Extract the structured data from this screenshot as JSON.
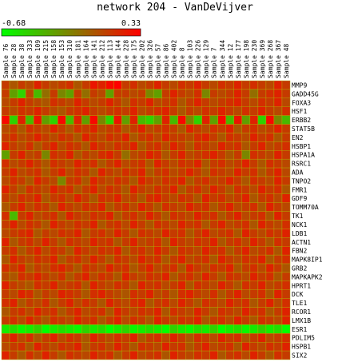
{
  "chart_data": {
    "type": "heatmap",
    "title": "network 204 - VanDeVijver",
    "color_scale": {
      "min": -0.68,
      "max": 0.33,
      "min_label": "-0.68",
      "max_label": "0.33",
      "low_color": "#00ff00",
      "mid_color": "#808000",
      "high_color": "#ff0000"
    },
    "columns": [
      "Sample 76",
      "Sample 28",
      "Sample 38",
      "Sample 333",
      "Sample 109",
      "Sample 215",
      "Sample 158",
      "Sample 153",
      "Sample 310",
      "Sample 181",
      "Sample 164",
      "Sample 141",
      "Sample 212",
      "Sample 113",
      "Sample 144",
      "Sample 228",
      "Sample 175",
      "Sample 202",
      "Sample 326",
      "Sample 57",
      "Sample 86",
      "Sample 402",
      "Sample 8",
      "Sample 103",
      "Sample 226",
      "Sample 129",
      "Sample 7",
      "Sample 344",
      "Sample 12",
      "Sample 177",
      "Sample 198",
      "Sample 230",
      "Sample 369",
      "Sample 268",
      "Sample 367",
      "Sample 48"
    ],
    "rows": [
      "MMP9",
      "GADD45G",
      "FOXA3",
      "HSF1",
      "ERBB2",
      "STAT5B",
      "EN2",
      "HSBP1",
      "HSPA1A",
      "RSRC1",
      "ADA",
      "TNPO2",
      "FMR1",
      "GDF9",
      "TOMM70A",
      "TK1",
      "NCK1",
      "LDB1",
      "ACTN1",
      "FBN2",
      "MAPK8IP1",
      "GRB2",
      "MAPKAPK2",
      "HPRT1",
      "DCK",
      "TLE1",
      "RCOR1",
      "LMX1B",
      "ESR1",
      "PDLIM5",
      "HSPB1",
      "SIX2"
    ],
    "values": [
      [
        0.1,
        0.0,
        0.1,
        0.05,
        0.2,
        0.1,
        0.05,
        0.1,
        0.15,
        0.0,
        0.1,
        0.25,
        0.2,
        0.3,
        0.33,
        0.1,
        0.15,
        0.05,
        0.1,
        0.2,
        0.1,
        0.05,
        0.15,
        0.1,
        0.2,
        0.1,
        0.05,
        0.15,
        0.1,
        0.2,
        0.1,
        0.15,
        0.1,
        0.05,
        0.2,
        0.1
      ],
      [
        0.1,
        -0.3,
        -0.5,
        0.05,
        -0.4,
        -0.1,
        0.1,
        -0.2,
        -0.3,
        0.1,
        -0.1,
        0.1,
        0.05,
        -0.3,
        0.1,
        0.1,
        0.05,
        0.1,
        -0.2,
        -0.3,
        0.1,
        0.2,
        0.1,
        0.05,
        0.15,
        -0.2,
        0.1,
        0.05,
        0.1,
        0.2,
        0.1,
        -0.1,
        0.1,
        0.15,
        0.2,
        0.1
      ],
      [
        0.05,
        0.1,
        0.2,
        0.1,
        0.05,
        0.0,
        0.15,
        0.1,
        0.05,
        0.2,
        0.1,
        0.05,
        0.1,
        0.2,
        0.1,
        0.0,
        0.15,
        0.1,
        0.2,
        0.05,
        0.1,
        0.15,
        0.0,
        0.1,
        0.2,
        0.1,
        0.05,
        0.1,
        0.15,
        0.2,
        0.1,
        0.05,
        0.15,
        0.1,
        0.2,
        0.05
      ],
      [
        0.1,
        0.05,
        0.15,
        0.1,
        0.2,
        0.1,
        0.05,
        0.0,
        0.1,
        0.15,
        0.2,
        0.1,
        0.05,
        0.1,
        0.15,
        0.1,
        0.2,
        0.05,
        0.1,
        0.15,
        0.2,
        0.1,
        0.0,
        0.1,
        0.05,
        0.15,
        0.1,
        0.2,
        0.1,
        0.05,
        0.15,
        0.1,
        0.2,
        0.1,
        0.05,
        0.15
      ],
      [
        0.3,
        -0.5,
        0.2,
        -0.4,
        0.25,
        -0.3,
        -0.5,
        0.3,
        -0.4,
        0.2,
        -0.3,
        0.3,
        -0.2,
        -0.5,
        0.25,
        -0.3,
        0.2,
        -0.4,
        -0.5,
        -0.3,
        0.2,
        -0.4,
        0.3,
        -0.2,
        -0.5,
        0.2,
        -0.3,
        0.3,
        -0.4,
        0.25,
        -0.3,
        0.2,
        -0.5,
        0.3,
        -0.2,
        -0.4
      ],
      [
        0.05,
        0.1,
        0.0,
        0.15,
        0.1,
        0.05,
        0.2,
        0.1,
        0.0,
        0.15,
        0.1,
        0.2,
        0.05,
        0.1,
        0.15,
        0.0,
        0.1,
        0.2,
        0.05,
        0.1,
        0.15,
        0.1,
        0.0,
        0.2,
        0.1,
        0.05,
        0.15,
        0.1,
        0.2,
        0.0,
        0.1,
        0.15,
        0.05,
        0.1,
        0.2,
        0.1
      ],
      [
        0.1,
        0.15,
        0.05,
        0.1,
        0.2,
        0.1,
        0.05,
        0.15,
        0.1,
        0.0,
        0.2,
        0.1,
        0.05,
        0.15,
        0.1,
        0.2,
        0.0,
        0.1,
        0.15,
        0.05,
        0.2,
        0.1,
        0.1,
        0.05,
        0.15,
        0.2,
        0.1,
        0.0,
        0.15,
        0.1,
        0.05,
        0.2,
        0.1,
        0.15,
        0.0,
        0.1
      ],
      [
        0.2,
        0.1,
        0.05,
        0.15,
        0.0,
        0.1,
        0.2,
        0.05,
        0.15,
        0.1,
        0.0,
        0.2,
        0.1,
        0.05,
        0.15,
        0.1,
        0.2,
        0.0,
        0.1,
        0.15,
        0.05,
        0.2,
        0.1,
        0.0,
        0.15,
        0.1,
        0.05,
        0.2,
        0.1,
        0.15,
        0.0,
        0.1,
        0.2,
        0.05,
        0.1,
        0.15
      ],
      [
        -0.3,
        0.1,
        0.2,
        0.05,
        0.1,
        -0.2,
        0.15,
        0.1,
        0.2,
        0.0,
        0.1,
        0.05,
        0.15,
        0.2,
        0.1,
        -0.1,
        0.05,
        0.1,
        0.2,
        0.15,
        0.0,
        0.1,
        0.2,
        0.05,
        0.1,
        0.15,
        0.2,
        0.1,
        0.0,
        0.1,
        -0.2,
        0.15,
        0.1,
        0.05,
        0.2,
        0.1
      ],
      [
        0.15,
        0.05,
        0.1,
        0.2,
        0.1,
        0.0,
        0.15,
        0.1,
        0.05,
        0.2,
        0.1,
        0.15,
        0.0,
        0.1,
        0.2,
        0.05,
        0.1,
        0.15,
        0.0,
        0.2,
        0.1,
        0.05,
        0.15,
        0.1,
        0.2,
        0.0,
        0.1,
        0.15,
        0.05,
        0.1,
        0.2,
        0.1,
        0.0,
        0.15,
        0.1,
        0.05
      ],
      [
        0.1,
        0.2,
        0.05,
        0.1,
        0.15,
        0.0,
        0.1,
        0.2,
        0.05,
        0.15,
        0.1,
        0.0,
        0.2,
        0.1,
        0.05,
        0.15,
        0.1,
        0.2,
        0.0,
        0.1,
        0.15,
        0.05,
        0.1,
        0.2,
        0.1,
        0.0,
        0.15,
        0.1,
        0.05,
        0.2,
        0.1,
        0.15,
        0.0,
        0.1,
        0.2,
        0.05
      ],
      [
        0.05,
        0.15,
        0.1,
        0.0,
        0.2,
        0.1,
        0.05,
        -0.2,
        0.1,
        0.15,
        0.0,
        0.2,
        0.1,
        0.05,
        0.15,
        0.1,
        0.0,
        0.2,
        0.1,
        0.05,
        0.15,
        0.1,
        0.2,
        0.0,
        0.1,
        0.15,
        0.05,
        0.1,
        0.2,
        0.1,
        0.0,
        0.15,
        0.1,
        0.05,
        0.2,
        0.1
      ],
      [
        0.2,
        0.1,
        0.0,
        0.15,
        0.1,
        0.05,
        0.2,
        0.1,
        0.15,
        0.0,
        0.1,
        0.2,
        0.05,
        0.15,
        0.1,
        0.0,
        0.2,
        0.1,
        0.05,
        0.15,
        0.1,
        0.2,
        0.0,
        0.1,
        0.15,
        0.05,
        0.2,
        0.1,
        0.0,
        0.15,
        0.1,
        0.05,
        0.2,
        0.1,
        0.15,
        0.0
      ],
      [
        0.1,
        0.05,
        0.15,
        0.1,
        0.2,
        0.0,
        0.1,
        0.15,
        0.05,
        0.2,
        0.1,
        0.0,
        0.15,
        0.1,
        0.2,
        0.05,
        0.1,
        0.0,
        0.15,
        0.2,
        0.1,
        0.05,
        0.15,
        0.1,
        0.0,
        0.2,
        0.1,
        0.15,
        0.05,
        0.1,
        0.2,
        0.0,
        0.1,
        0.15,
        0.05,
        0.2
      ],
      [
        0.0,
        0.1,
        0.2,
        0.05,
        0.15,
        0.1,
        0.0,
        0.2,
        0.1,
        0.05,
        0.15,
        0.1,
        0.2,
        0.0,
        0.1,
        0.15,
        0.05,
        0.2,
        0.1,
        0.0,
        0.15,
        0.1,
        0.05,
        0.2,
        0.1,
        0.15,
        0.0,
        0.1,
        0.2,
        0.05,
        0.1,
        0.15,
        0.0,
        0.2,
        0.1,
        0.05
      ],
      [
        0.15,
        -0.4,
        0.1,
        0.2,
        0.05,
        0.1,
        0.15,
        0.0,
        0.2,
        0.1,
        0.05,
        0.15,
        0.1,
        0.2,
        0.0,
        0.1,
        0.15,
        0.05,
        0.2,
        0.1,
        0.0,
        0.15,
        0.1,
        0.05,
        0.2,
        0.1,
        0.15,
        0.0,
        0.1,
        0.2,
        0.05,
        0.1,
        0.15,
        0.0,
        0.2,
        0.1
      ],
      [
        0.1,
        0.2,
        0.05,
        0.15,
        0.1,
        0.0,
        0.2,
        0.1,
        0.05,
        0.15,
        0.1,
        0.2,
        0.0,
        0.1,
        0.15,
        0.05,
        0.2,
        0.1,
        0.0,
        0.15,
        0.1,
        0.05,
        0.2,
        0.1,
        0.15,
        0.0,
        0.1,
        0.2,
        0.05,
        0.1,
        0.15,
        0.0,
        0.2,
        0.1,
        0.05,
        0.15
      ],
      [
        0.05,
        0.1,
        0.15,
        0.2,
        0.0,
        0.1,
        0.05,
        0.15,
        0.1,
        0.2,
        0.0,
        0.1,
        0.15,
        0.05,
        0.2,
        0.1,
        0.0,
        0.15,
        0.1,
        0.05,
        0.2,
        0.1,
        0.15,
        0.0,
        0.1,
        0.2,
        0.05,
        0.1,
        0.15,
        0.0,
        0.2,
        0.1,
        0.05,
        0.15,
        0.1,
        0.2
      ],
      [
        0.2,
        0.0,
        0.1,
        0.15,
        0.05,
        0.2,
        0.1,
        0.0,
        0.15,
        0.1,
        0.05,
        0.2,
        0.1,
        0.15,
        0.0,
        0.1,
        0.2,
        0.05,
        0.1,
        0.15,
        0.0,
        0.2,
        0.1,
        0.05,
        0.15,
        0.1,
        0.2,
        0.0,
        0.1,
        0.15,
        0.05,
        0.2,
        0.1,
        0.0,
        0.15,
        0.1
      ],
      [
        0.1,
        0.15,
        0.0,
        0.1,
        0.2,
        0.05,
        0.15,
        0.1,
        0.0,
        0.2,
        0.1,
        0.05,
        0.15,
        0.1,
        0.2,
        0.0,
        0.1,
        0.15,
        0.05,
        0.2,
        0.1,
        0.0,
        0.15,
        0.1,
        0.05,
        0.2,
        0.1,
        0.15,
        0.0,
        0.1,
        0.2,
        0.05,
        0.1,
        0.15,
        0.0,
        0.2
      ],
      [
        0.0,
        0.2,
        0.1,
        0.05,
        0.15,
        0.1,
        0.2,
        0.0,
        0.1,
        0.15,
        0.05,
        0.2,
        0.1,
        0.0,
        0.15,
        0.1,
        0.05,
        0.2,
        0.1,
        0.15,
        0.0,
        0.1,
        0.2,
        0.05,
        0.1,
        0.15,
        0.0,
        0.2,
        0.1,
        0.05,
        0.15,
        0.1,
        0.2,
        0.0,
        0.1,
        0.15
      ],
      [
        0.15,
        0.1,
        0.2,
        0.0,
        0.1,
        0.05,
        0.15,
        0.2,
        0.1,
        0.0,
        0.15,
        0.1,
        0.05,
        0.2,
        0.1,
        0.15,
        0.0,
        0.1,
        0.2,
        0.05,
        0.1,
        0.15,
        0.0,
        0.2,
        0.1,
        0.05,
        0.15,
        0.1,
        0.2,
        0.0,
        0.1,
        0.15,
        0.05,
        0.2,
        0.1,
        0.0
      ],
      [
        0.05,
        0.0,
        0.15,
        0.1,
        0.2,
        0.1,
        0.05,
        0.15,
        0.0,
        0.1,
        0.2,
        0.05,
        0.15,
        0.1,
        0.0,
        0.2,
        0.1,
        0.05,
        0.15,
        0.1,
        0.2,
        0.0,
        0.1,
        0.15,
        0.05,
        0.2,
        0.1,
        0.0,
        0.15,
        0.1,
        0.05,
        0.2,
        0.1,
        0.15,
        0.0,
        0.1
      ],
      [
        0.2,
        0.1,
        0.05,
        0.0,
        0.15,
        0.1,
        0.2,
        0.05,
        0.1,
        0.15,
        0.0,
        0.2,
        0.1,
        0.05,
        0.15,
        0.1,
        0.0,
        0.2,
        0.1,
        0.15,
        0.05,
        0.1,
        0.2,
        0.0,
        0.15,
        0.1,
        0.05,
        0.2,
        0.1,
        0.0,
        0.15,
        0.1,
        0.2,
        0.05,
        0.1,
        0.15
      ],
      [
        0.1,
        0.05,
        0.2,
        0.15,
        0.0,
        0.1,
        0.05,
        0.2,
        0.15,
        0.1,
        0.0,
        0.15,
        0.2,
        0.1,
        0.05,
        0.0,
        0.15,
        0.1,
        0.2,
        0.05,
        0.1,
        0.0,
        0.15,
        0.2,
        0.1,
        0.05,
        0.15,
        0.0,
        0.1,
        0.2,
        0.05,
        0.1,
        0.15,
        0.0,
        0.2,
        0.1
      ],
      [
        0.15,
        0.2,
        0.0,
        0.1,
        0.05,
        0.15,
        0.0,
        0.1,
        0.2,
        0.05,
        0.15,
        0.1,
        0.0,
        0.2,
        0.1,
        0.05,
        0.15,
        0.2,
        0.0,
        0.1,
        0.15,
        0.05,
        0.2,
        0.1,
        0.0,
        0.15,
        0.1,
        0.05,
        0.2,
        0.1,
        0.15,
        0.0,
        0.1,
        0.2,
        0.05,
        0.15
      ],
      [
        0.0,
        0.1,
        0.15,
        0.05,
        0.2,
        0.1,
        0.15,
        0.0,
        0.1,
        0.2,
        0.05,
        0.1,
        0.15,
        0.0,
        0.2,
        0.1,
        0.05,
        0.15,
        0.1,
        0.2,
        0.0,
        0.15,
        0.1,
        0.05,
        0.2,
        0.1,
        0.0,
        0.15,
        0.1,
        0.05,
        0.2,
        0.1,
        0.15,
        0.0,
        0.1,
        0.2
      ],
      [
        0.1,
        0.15,
        0.05,
        0.2,
        0.1,
        0.0,
        0.15,
        0.1,
        0.05,
        0.2,
        0.1,
        0.15,
        0.0,
        0.1,
        0.2,
        0.05,
        0.15,
        0.1,
        0.0,
        0.2,
        0.1,
        0.05,
        0.15,
        0.1,
        0.2,
        0.0,
        0.1,
        0.15,
        0.05,
        0.2,
        0.1,
        0.0,
        0.15,
        0.1,
        0.05,
        0.2
      ],
      [
        -0.6,
        -0.55,
        -0.65,
        -0.6,
        -0.5,
        -0.68,
        -0.6,
        -0.55,
        -0.6,
        -0.65,
        -0.5,
        -0.6,
        -0.55,
        -0.68,
        -0.6,
        -0.5,
        -0.65,
        -0.6,
        -0.55,
        -0.6,
        -0.68,
        -0.5,
        -0.6,
        -0.65,
        -0.55,
        -0.6,
        -0.5,
        -0.68,
        -0.6,
        -0.55,
        -0.65,
        -0.6,
        -0.5,
        -0.6,
        -0.55,
        -0.68
      ],
      [
        0.1,
        0.2,
        0.05,
        0.15,
        0.0,
        0.1,
        0.2,
        0.05,
        0.15,
        0.1,
        0.0,
        0.2,
        0.1,
        0.05,
        0.15,
        0.1,
        0.2,
        0.0,
        0.1,
        0.15,
        0.05,
        0.2,
        0.1,
        0.0,
        0.15,
        0.1,
        0.05,
        0.2,
        0.1,
        0.15,
        0.0,
        0.1,
        0.2,
        0.05,
        0.1,
        0.15
      ],
      [
        0.05,
        0.1,
        0.15,
        0.0,
        0.2,
        0.1,
        0.05,
        0.15,
        0.1,
        0.2,
        0.0,
        0.1,
        0.15,
        0.05,
        0.2,
        0.1,
        0.0,
        0.15,
        0.1,
        0.05,
        0.2,
        0.1,
        0.15,
        0.0,
        0.1,
        0.2,
        0.05,
        0.1,
        0.15,
        0.0,
        0.2,
        0.1,
        0.05,
        0.15,
        0.1,
        0.2
      ],
      [
        0.2,
        0.1,
        0.0,
        0.15,
        0.05,
        0.2,
        0.1,
        0.0,
        0.15,
        0.1,
        0.05,
        0.2,
        0.1,
        0.15,
        0.0,
        0.1,
        0.2,
        0.05,
        0.1,
        0.15,
        0.0,
        0.2,
        0.1,
        0.05,
        0.15,
        0.1,
        0.2,
        0.0,
        0.1,
        0.15,
        0.05,
        0.2,
        0.1,
        0.0,
        0.15,
        0.1
      ]
    ]
  }
}
